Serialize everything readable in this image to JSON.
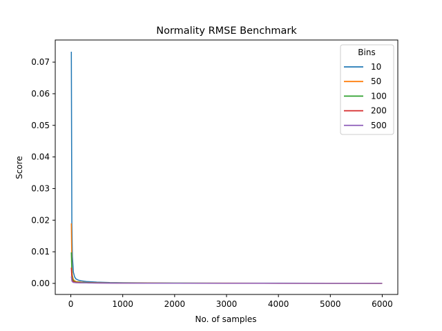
{
  "chart_data": {
    "type": "line",
    "title": "Normality RMSE Benchmark",
    "xlabel": "No. of samples",
    "ylabel": "Score",
    "xlim": [
      -300,
      6300
    ],
    "ylim": [
      -0.0035,
      0.077
    ],
    "x_ticks": [
      0,
      1000,
      2000,
      3000,
      4000,
      5000,
      6000
    ],
    "y_ticks": [
      0.0,
      0.01,
      0.02,
      0.03,
      0.04,
      0.05,
      0.06,
      0.07
    ],
    "y_tick_labels": [
      "0.00",
      "0.01",
      "0.02",
      "0.03",
      "0.04",
      "0.05",
      "0.06",
      "0.07"
    ],
    "grid": false,
    "legend": {
      "title": "Bins",
      "placement": "top-right"
    },
    "x": [
      10,
      20,
      30,
      50,
      75,
      100,
      150,
      200,
      300,
      500,
      750,
      1000,
      1500,
      2000,
      3000,
      4000,
      5000,
      6000
    ],
    "series": [
      {
        "name": "10",
        "color": "#1f77b4",
        "values": [
          0.0733,
          0.0185,
          0.0085,
          0.0035,
          0.002,
          0.0014,
          0.001,
          0.0008,
          0.0006,
          0.0004,
          0.00025,
          0.0002,
          0.00015,
          0.0001,
          8e-05,
          6e-05,
          5e-05,
          4e-05
        ]
      },
      {
        "name": "50",
        "color": "#ff7f0e",
        "values": [
          0.019,
          0.005,
          0.0025,
          0.0012,
          0.0008,
          0.0006,
          0.0005,
          0.0004,
          0.0003,
          0.0002,
          0.00015,
          0.00012,
          0.0001,
          8e-05,
          6e-05,
          5e-05,
          4e-05,
          3e-05
        ]
      },
      {
        "name": "100",
        "color": "#2ca02c",
        "values": [
          0.0098,
          0.003,
          0.0015,
          0.0008,
          0.0005,
          0.0004,
          0.00035,
          0.0003,
          0.00025,
          0.00018,
          0.00012,
          0.0001,
          8e-05,
          7e-05,
          5e-05,
          4e-05,
          3e-05,
          3e-05
        ]
      },
      {
        "name": "200",
        "color": "#d62728",
        "values": [
          0.005,
          0.0016,
          0.0009,
          0.0005,
          0.0004,
          0.0003,
          0.00025,
          0.0002,
          0.00018,
          0.00012,
          0.0001,
          8e-05,
          6e-05,
          5e-05,
          4e-05,
          3e-05,
          3e-05,
          2e-05
        ]
      },
      {
        "name": "500",
        "color": "#9467bd",
        "values": [
          0.0022,
          0.0008,
          0.0005,
          0.0003,
          0.00025,
          0.0002,
          0.00018,
          0.00016,
          0.00014,
          0.0001,
          8e-05,
          6e-05,
          5e-05,
          4e-05,
          3e-05,
          3e-05,
          2e-05,
          2e-05
        ]
      }
    ]
  }
}
